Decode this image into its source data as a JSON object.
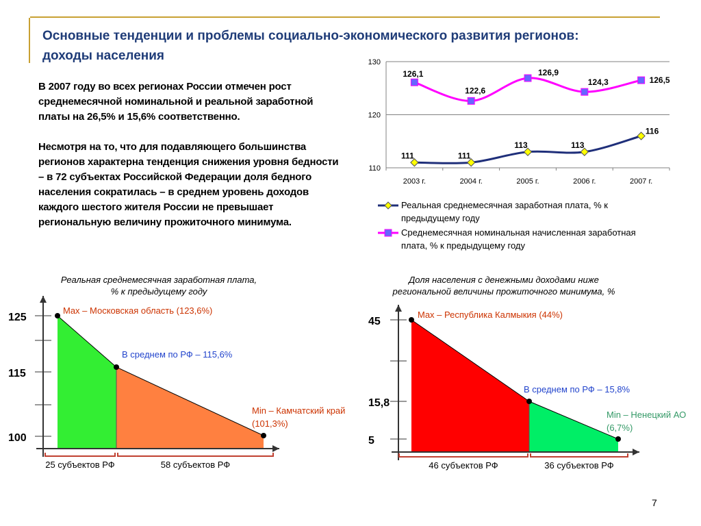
{
  "slide": {
    "title_line1": "Основные тенденции и проблемы социально-экономического развития регионов:",
    "title_line2": "доходы населения",
    "paragraph1": "В 2007 году во всех регионах России отмечен рост среднемесячной номинальной и реальной заработной платы на 26,5% и 15,6% соответственно.",
    "paragraph2": "Несмотря на то, что для подавляющего большинства регионов характерна тенденция снижения уровня бедности – в 72 субъектах Российской Федерации доля бедного населения сократилась – в среднем уровень доходов каждого шестого жителя России не превышает региональную величину прожиточного минимума.",
    "page_number": "7"
  },
  "chart_data": [
    {
      "type": "line",
      "categories": [
        "2003 г.",
        "2004 г.",
        "2005 г.",
        "2006 г.",
        "2007 г."
      ],
      "ylim": [
        110,
        130
      ],
      "yticks": [
        "110",
        "120",
        "130"
      ],
      "grid": true,
      "legend_position": "bottom",
      "series": [
        {
          "name": "Реальная среднемесячная заработная плата, % к предыдущему году",
          "values": [
            111,
            111,
            113,
            113,
            116
          ],
          "labels": [
            "111",
            "111",
            "113",
            "113",
            "116"
          ],
          "color": "#1f2f7a",
          "marker_color": "#ffff00",
          "marker": "diamond"
        },
        {
          "name": "Среднемесячная номинальная начисленная заработная плата, % к предыдущему году",
          "values": [
            126.1,
            122.6,
            126.9,
            124.3,
            126.5
          ],
          "labels": [
            "126,1",
            "122,6",
            "126,9",
            "124,3",
            "126,5"
          ],
          "color": "#ff00ff",
          "marker_color": "#6666ff",
          "marker": "square"
        }
      ]
    },
    {
      "type": "area",
      "title_line1": "Реальная среднемесячная заработная плата,",
      "title_line2": "% к предыдущему году",
      "yticks": [
        "100",
        "115",
        "125"
      ],
      "points": [
        {
          "label": "Max – Московская область (123,6%)",
          "value": 123.6
        },
        {
          "label": "В среднем по РФ – 115,6%",
          "value": 115.6
        },
        {
          "label_line1": "Min – Камчатский край",
          "label_line2": "(101,3%)",
          "value": 101.3
        }
      ],
      "segments": [
        {
          "label": "25 субъектов РФ",
          "count": 25,
          "color": "#33ee33"
        },
        {
          "label": "58 субъектов РФ",
          "count": 58,
          "color": "#ff8040"
        }
      ],
      "label_color": "#cc3300",
      "avg_color": "#2244cc",
      "min_color": "#cc3300"
    },
    {
      "type": "area",
      "title_line1": "Доля населения с денежными доходами ниже",
      "title_line2": "региональной величины прожиточного минимума, %",
      "yticks": [
        "5",
        "15,8",
        "45"
      ],
      "points": [
        {
          "label": "Max – Республика Калмыкия (44%)",
          "value": 44
        },
        {
          "label": "В среднем по РФ – 15,8%",
          "value": 15.8
        },
        {
          "label_line1": "Min – Ненецкий АО",
          "label_line2": "(6,7%)",
          "value": 6.7
        }
      ],
      "segments": [
        {
          "label": "46 субъектов РФ",
          "count": 46,
          "color": "#ff0000"
        },
        {
          "label": "36 субъектов РФ",
          "count": 36,
          "color": "#00ee66"
        }
      ],
      "label_color": "#cc3300",
      "avg_color": "#2244cc",
      "min_color": "#339966"
    }
  ]
}
